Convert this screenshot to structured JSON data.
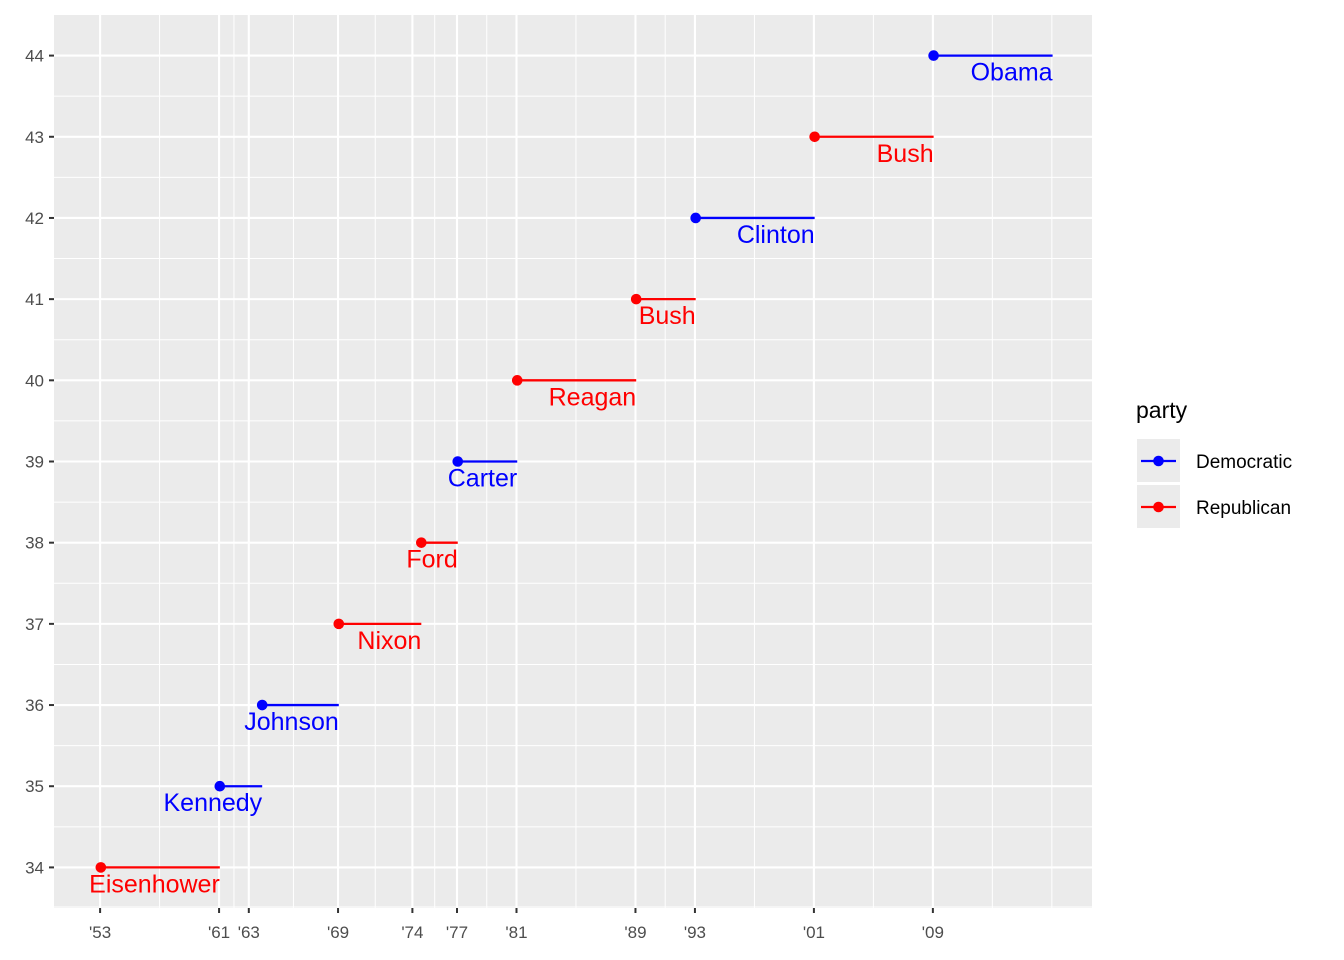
{
  "chart_data": {
    "type": "line",
    "x_tick_labels": [
      {
        "year": 1953,
        "label": "'53"
      },
      {
        "year": 1961,
        "label": "'61"
      },
      {
        "year": 1963,
        "label": "'63"
      },
      {
        "year": 1969,
        "label": "'69"
      },
      {
        "year": 1974,
        "label": "'74"
      },
      {
        "year": 1977,
        "label": "'77"
      },
      {
        "year": 1981,
        "label": "'81"
      },
      {
        "year": 1989,
        "label": "'89"
      },
      {
        "year": 1993,
        "label": "'93"
      },
      {
        "year": 2001,
        "label": "'01"
      },
      {
        "year": 2009,
        "label": "'09"
      }
    ],
    "y_ticks": [
      34,
      35,
      36,
      37,
      38,
      39,
      40,
      41,
      42,
      43,
      44
    ],
    "xlim": [
      1949.9,
      2019.7
    ],
    "ylim": [
      33.5,
      44.5
    ],
    "grid": true,
    "legend": {
      "title": "party",
      "position": "right",
      "entries": [
        {
          "label": "Democratic",
          "color": "#0000ff"
        },
        {
          "label": "Republican",
          "color": "#ff0000"
        }
      ]
    },
    "presidents": [
      {
        "name": "Eisenhower",
        "id": 34,
        "start": 1953.05,
        "end": 1961.05,
        "party": "Republican"
      },
      {
        "name": "Kennedy",
        "id": 35,
        "start": 1961.05,
        "end": 1963.9,
        "party": "Democratic"
      },
      {
        "name": "Johnson",
        "id": 36,
        "start": 1963.9,
        "end": 1969.05,
        "party": "Democratic"
      },
      {
        "name": "Nixon",
        "id": 37,
        "start": 1969.05,
        "end": 1974.6,
        "party": "Republican"
      },
      {
        "name": "Ford",
        "id": 38,
        "start": 1974.6,
        "end": 1977.05,
        "party": "Republican"
      },
      {
        "name": "Carter",
        "id": 39,
        "start": 1977.05,
        "end": 1981.05,
        "party": "Democratic"
      },
      {
        "name": "Reagan",
        "id": 40,
        "start": 1981.05,
        "end": 1989.05,
        "party": "Republican"
      },
      {
        "name": "Bush",
        "id": 41,
        "start": 1989.05,
        "end": 1993.05,
        "party": "Republican"
      },
      {
        "name": "Clinton",
        "id": 42,
        "start": 1993.05,
        "end": 2001.05,
        "party": "Democratic"
      },
      {
        "name": "Bush",
        "id": 43,
        "start": 2001.05,
        "end": 2009.05,
        "party": "Republican"
      },
      {
        "name": "Obama",
        "id": 44,
        "start": 2009.05,
        "end": 2017.05,
        "party": "Democratic"
      }
    ]
  }
}
